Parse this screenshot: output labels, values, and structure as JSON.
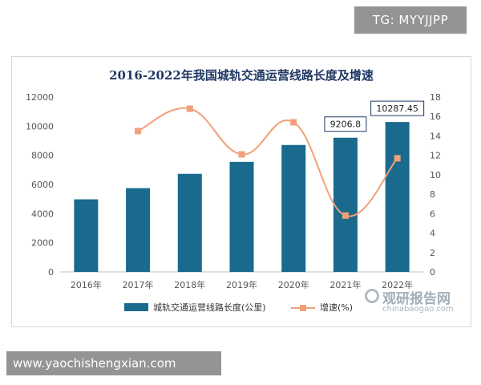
{
  "top_tag": "TG: MYYJJPP",
  "bottom_tag": "www.yaochishengxian.com",
  "watermark": {
    "name": "观研报告网",
    "url": "chinabaogao.com"
  },
  "colors": {
    "bar": "#1a6a8e",
    "line": "#f0a07a",
    "marker": "#f0a07a",
    "axis": "#555555"
  },
  "chart_data": {
    "type": "bar",
    "title": "2016-2022年我国城轨交通运营线路长度及增速",
    "categories": [
      "2016年",
      "2017年",
      "2018年",
      "2019年",
      "2020年",
      "2021年",
      "2022年"
    ],
    "series": [
      {
        "name": "城轨交通运营线路长度(公里)",
        "type": "bar",
        "axis": "left",
        "values": [
          4980,
          5750,
          6730,
          7550,
          8710,
          9206.8,
          10287.45
        ]
      },
      {
        "name": "增速(%)",
        "type": "line",
        "axis": "right",
        "values": [
          null,
          14.5,
          16.8,
          12.1,
          15.4,
          5.8,
          11.7
        ]
      }
    ],
    "data_labels": [
      {
        "index": 5,
        "text": "9206.8"
      },
      {
        "index": 6,
        "text": "10287.45"
      }
    ],
    "ylim_left": [
      0,
      12000
    ],
    "yticks_left": [
      "0",
      "2000",
      "4000",
      "6000",
      "8000",
      "10000",
      "12000"
    ],
    "ylim_right": [
      0,
      18
    ],
    "yticks_right": [
      "0",
      "2",
      "4",
      "6",
      "8",
      "10",
      "12",
      "14",
      "16",
      "18"
    ],
    "legend_position": "bottom",
    "grid": false
  }
}
